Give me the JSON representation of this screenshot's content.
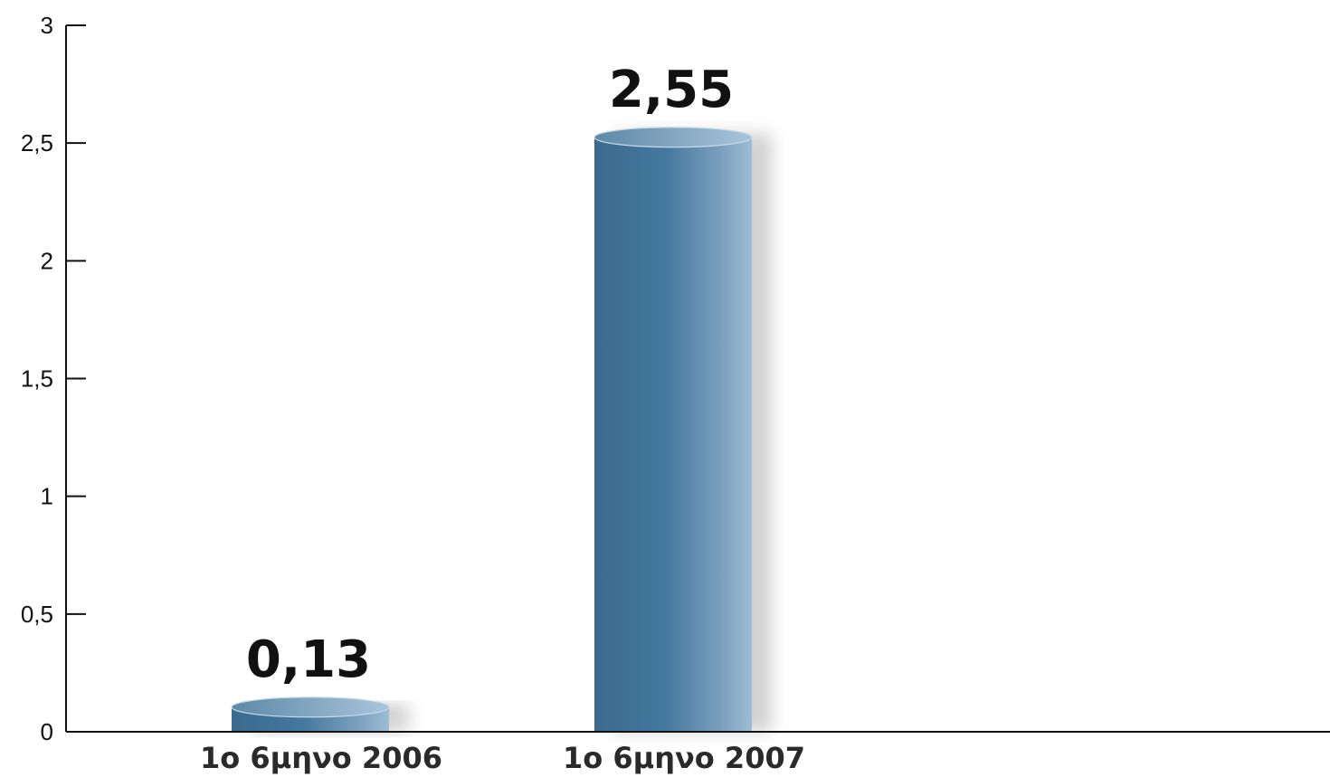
{
  "chart_data": {
    "type": "bar",
    "title": "",
    "xlabel": "",
    "ylabel": "",
    "categories": [
      "1ο 6μηνο 2006",
      "1ο 6μηνο 2007"
    ],
    "values": [
      0.13,
      2.55
    ],
    "value_labels": [
      "0,13",
      "2,55"
    ],
    "ylim": [
      0,
      3
    ],
    "yticks": [
      0,
      0.5,
      1,
      1.5,
      2,
      2.5,
      3
    ],
    "ytick_labels": [
      "0",
      "0,5",
      "1",
      "1,5",
      "2",
      "2,5",
      "3"
    ],
    "grid": false,
    "legend": "none",
    "bar_style": "cylinder",
    "bar_color_dark": "#3e6f93",
    "bar_color_light": "#8fb2cc",
    "axis_color": "#111111"
  }
}
